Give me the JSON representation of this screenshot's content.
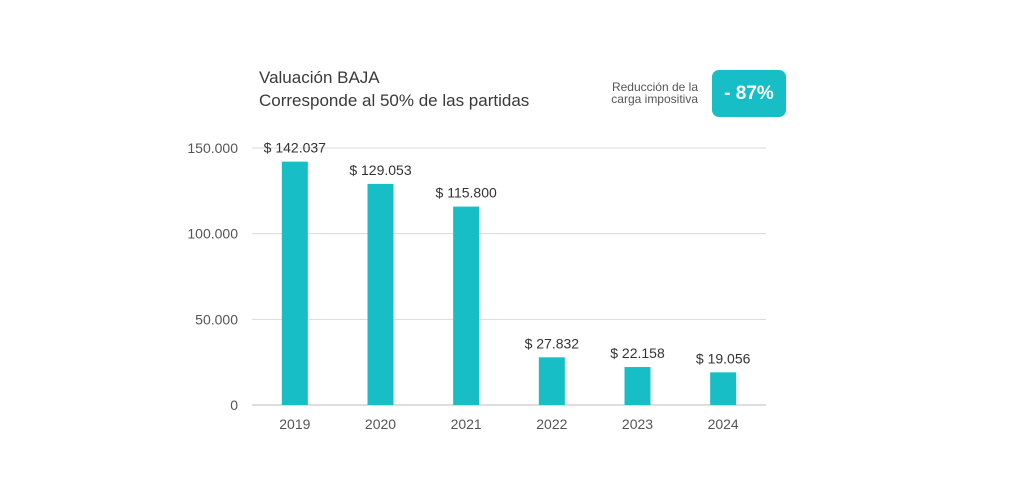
{
  "chart_data": {
    "type": "bar",
    "title_line1": "Valuación BAJA",
    "title_line2": "Corresponde al 50% de las partidas",
    "categories": [
      "2019",
      "2020",
      "2021",
      "2022",
      "2023",
      "2024"
    ],
    "values": [
      142037,
      129053,
      115800,
      27832,
      22158,
      19056
    ],
    "data_labels": [
      "$ 142.037",
      "$ 129.053",
      "$ 115.800",
      "$ 27.832",
      "$ 22.158",
      "$ 19.056"
    ],
    "yticks": [
      0,
      50000,
      100000,
      150000
    ],
    "ytick_labels": [
      "0",
      "50.000",
      "100.000",
      "150.000"
    ],
    "ylim": [
      0,
      150000
    ],
    "xlabel": "",
    "ylabel": "",
    "grid": true
  },
  "reduction": {
    "label_line1": "Reducción de la",
    "label_line2": "carga impositiva",
    "value": "- 87%"
  },
  "colors": {
    "bar": "#17bec6",
    "badge": "#17bec6",
    "grid": "#d9d9d9",
    "axis": "#bdbdbd"
  }
}
